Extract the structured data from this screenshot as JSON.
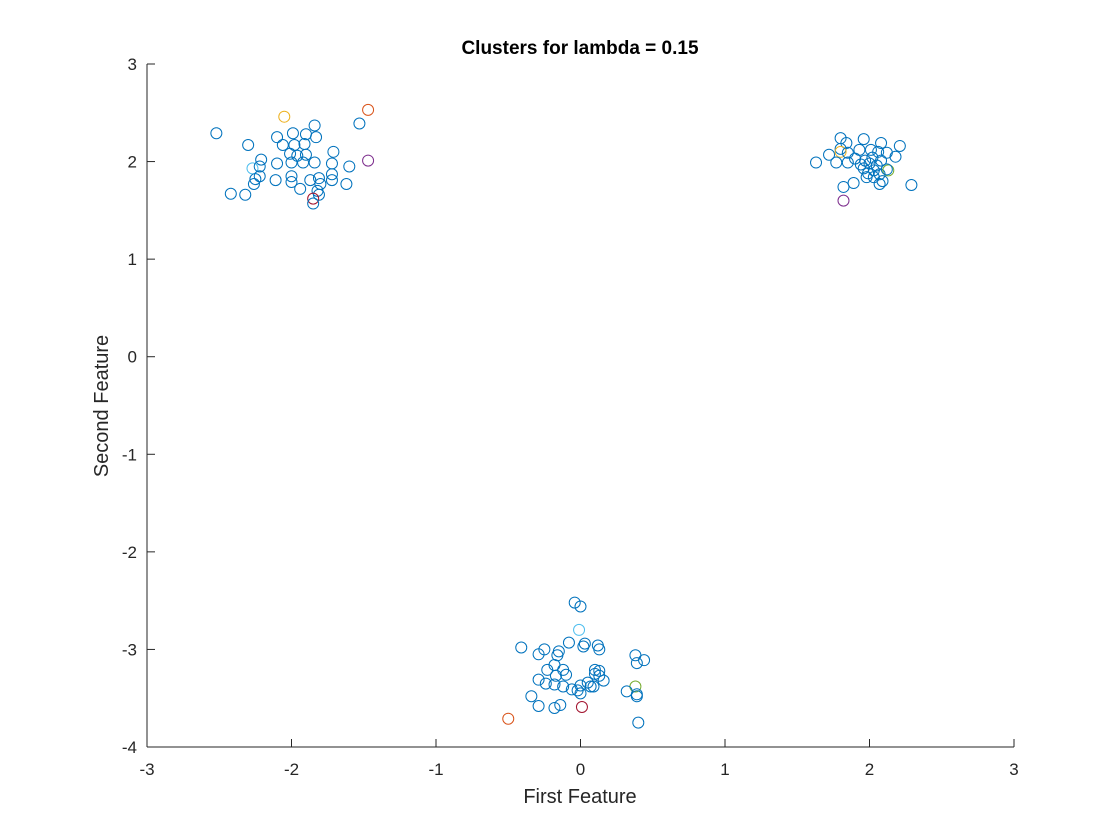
{
  "chart_data": {
    "type": "scatter",
    "title": "Clusters for lambda = 0.15",
    "xlabel": "First Feature",
    "ylabel": "Second Feature",
    "xlim": [
      -3,
      3
    ],
    "ylim": [
      -4,
      3
    ],
    "xticks": [
      -3,
      -2,
      -1,
      0,
      1,
      2,
      3
    ],
    "yticks": [
      -4,
      -3,
      -2,
      -1,
      0,
      1,
      2,
      3
    ],
    "grid": false,
    "marker": "circle-open",
    "colors": {
      "blue": "#0072BD",
      "orange": "#EDB120",
      "red": "#D95319",
      "purple": "#7E2F8E",
      "green": "#77AC30",
      "cyan": "#4DBEEE",
      "maroon": "#A2142F"
    },
    "points": [
      {
        "x": -2.52,
        "y": 2.29,
        "c": "blue"
      },
      {
        "x": -2.3,
        "y": 2.17,
        "c": "blue"
      },
      {
        "x": -2.1,
        "y": 2.25,
        "c": "blue"
      },
      {
        "x": -2.05,
        "y": 2.46,
        "c": "orange"
      },
      {
        "x": -1.99,
        "y": 2.29,
        "c": "blue"
      },
      {
        "x": -1.9,
        "y": 2.28,
        "c": "blue"
      },
      {
        "x": -1.84,
        "y": 2.37,
        "c": "blue"
      },
      {
        "x": -1.83,
        "y": 2.25,
        "c": "blue"
      },
      {
        "x": -1.53,
        "y": 2.39,
        "c": "blue"
      },
      {
        "x": -1.47,
        "y": 2.53,
        "c": "red"
      },
      {
        "x": -2.06,
        "y": 2.17,
        "c": "blue"
      },
      {
        "x": -1.98,
        "y": 2.17,
        "c": "blue"
      },
      {
        "x": -1.91,
        "y": 2.18,
        "c": "blue"
      },
      {
        "x": -2.01,
        "y": 2.08,
        "c": "blue"
      },
      {
        "x": -1.96,
        "y": 2.06,
        "c": "blue"
      },
      {
        "x": -1.9,
        "y": 2.07,
        "c": "blue"
      },
      {
        "x": -1.71,
        "y": 2.1,
        "c": "blue"
      },
      {
        "x": -2.21,
        "y": 2.02,
        "c": "blue"
      },
      {
        "x": -2.1,
        "y": 1.98,
        "c": "blue"
      },
      {
        "x": -2.0,
        "y": 1.99,
        "c": "blue"
      },
      {
        "x": -1.92,
        "y": 1.99,
        "c": "blue"
      },
      {
        "x": -1.84,
        "y": 1.99,
        "c": "blue"
      },
      {
        "x": -1.72,
        "y": 1.98,
        "c": "blue"
      },
      {
        "x": -1.6,
        "y": 1.95,
        "c": "blue"
      },
      {
        "x": -1.47,
        "y": 2.01,
        "c": "purple"
      },
      {
        "x": -2.27,
        "y": 1.93,
        "c": "cyan"
      },
      {
        "x": -2.22,
        "y": 1.95,
        "c": "blue"
      },
      {
        "x": -2.22,
        "y": 1.85,
        "c": "blue"
      },
      {
        "x": -2.25,
        "y": 1.82,
        "c": "blue"
      },
      {
        "x": -2.26,
        "y": 1.77,
        "c": "blue"
      },
      {
        "x": -2.11,
        "y": 1.81,
        "c": "blue"
      },
      {
        "x": -2.0,
        "y": 1.79,
        "c": "blue"
      },
      {
        "x": -2.0,
        "y": 1.85,
        "c": "blue"
      },
      {
        "x": -1.94,
        "y": 1.72,
        "c": "blue"
      },
      {
        "x": -1.87,
        "y": 1.81,
        "c": "blue"
      },
      {
        "x": -1.81,
        "y": 1.83,
        "c": "blue"
      },
      {
        "x": -1.8,
        "y": 1.77,
        "c": "blue"
      },
      {
        "x": -1.72,
        "y": 1.81,
        "c": "blue"
      },
      {
        "x": -1.72,
        "y": 1.87,
        "c": "blue"
      },
      {
        "x": -1.62,
        "y": 1.77,
        "c": "blue"
      },
      {
        "x": -2.42,
        "y": 1.67,
        "c": "blue"
      },
      {
        "x": -2.32,
        "y": 1.66,
        "c": "blue"
      },
      {
        "x": -1.82,
        "y": 1.7,
        "c": "blue"
      },
      {
        "x": -1.81,
        "y": 1.66,
        "c": "blue"
      },
      {
        "x": -1.85,
        "y": 1.62,
        "c": "maroon"
      },
      {
        "x": -1.85,
        "y": 1.57,
        "c": "blue"
      },
      {
        "x": 1.8,
        "y": 2.24,
        "c": "blue"
      },
      {
        "x": 1.84,
        "y": 2.19,
        "c": "blue"
      },
      {
        "x": 1.96,
        "y": 2.23,
        "c": "blue"
      },
      {
        "x": 2.08,
        "y": 2.19,
        "c": "blue"
      },
      {
        "x": 2.21,
        "y": 2.16,
        "c": "blue"
      },
      {
        "x": 1.72,
        "y": 2.07,
        "c": "blue"
      },
      {
        "x": 1.8,
        "y": 2.13,
        "c": "blue"
      },
      {
        "x": 1.8,
        "y": 2.1,
        "c": "orange"
      },
      {
        "x": 1.85,
        "y": 2.09,
        "c": "blue"
      },
      {
        "x": 1.93,
        "y": 2.12,
        "c": "blue"
      },
      {
        "x": 2.01,
        "y": 2.12,
        "c": "blue"
      },
      {
        "x": 2.06,
        "y": 2.1,
        "c": "blue"
      },
      {
        "x": 2.12,
        "y": 2.09,
        "c": "blue"
      },
      {
        "x": 2.18,
        "y": 2.05,
        "c": "blue"
      },
      {
        "x": 1.63,
        "y": 1.99,
        "c": "blue"
      },
      {
        "x": 1.77,
        "y": 1.99,
        "c": "blue"
      },
      {
        "x": 1.85,
        "y": 1.99,
        "c": "blue"
      },
      {
        "x": 1.9,
        "y": 2.03,
        "c": "blue"
      },
      {
        "x": 1.94,
        "y": 1.97,
        "c": "blue"
      },
      {
        "x": 1.97,
        "y": 2.01,
        "c": "blue"
      },
      {
        "x": 2.0,
        "y": 1.98,
        "c": "blue"
      },
      {
        "x": 2.02,
        "y": 2.04,
        "c": "blue"
      },
      {
        "x": 2.05,
        "y": 1.96,
        "c": "blue"
      },
      {
        "x": 2.08,
        "y": 2.01,
        "c": "blue"
      },
      {
        "x": 1.96,
        "y": 1.93,
        "c": "blue"
      },
      {
        "x": 1.99,
        "y": 1.88,
        "c": "blue"
      },
      {
        "x": 2.03,
        "y": 1.91,
        "c": "blue"
      },
      {
        "x": 2.07,
        "y": 1.87,
        "c": "blue"
      },
      {
        "x": 2.13,
        "y": 1.91,
        "c": "green"
      },
      {
        "x": 2.12,
        "y": 1.92,
        "c": "blue"
      },
      {
        "x": 1.98,
        "y": 1.84,
        "c": "blue"
      },
      {
        "x": 2.03,
        "y": 1.84,
        "c": "blue"
      },
      {
        "x": 2.07,
        "y": 1.77,
        "c": "blue"
      },
      {
        "x": 2.09,
        "y": 1.8,
        "c": "blue"
      },
      {
        "x": 1.89,
        "y": 1.78,
        "c": "blue"
      },
      {
        "x": 1.82,
        "y": 1.74,
        "c": "blue"
      },
      {
        "x": 2.29,
        "y": 1.76,
        "c": "blue"
      },
      {
        "x": 1.82,
        "y": 1.6,
        "c": "purple"
      },
      {
        "x": -0.04,
        "y": -2.52,
        "c": "blue"
      },
      {
        "x": 0.0,
        "y": -2.56,
        "c": "blue"
      },
      {
        "x": -0.01,
        "y": -2.8,
        "c": "cyan"
      },
      {
        "x": -0.08,
        "y": -2.93,
        "c": "blue"
      },
      {
        "x": 0.03,
        "y": -2.94,
        "c": "blue"
      },
      {
        "x": 0.02,
        "y": -2.97,
        "c": "blue"
      },
      {
        "x": 0.12,
        "y": -2.96,
        "c": "blue"
      },
      {
        "x": 0.13,
        "y": -3.0,
        "c": "blue"
      },
      {
        "x": -0.41,
        "y": -2.98,
        "c": "blue"
      },
      {
        "x": -0.25,
        "y": -3.0,
        "c": "blue"
      },
      {
        "x": -0.29,
        "y": -3.05,
        "c": "blue"
      },
      {
        "x": -0.15,
        "y": -3.02,
        "c": "blue"
      },
      {
        "x": -0.16,
        "y": -3.06,
        "c": "blue"
      },
      {
        "x": 0.38,
        "y": -3.06,
        "c": "blue"
      },
      {
        "x": 0.44,
        "y": -3.11,
        "c": "blue"
      },
      {
        "x": 0.39,
        "y": -3.14,
        "c": "blue"
      },
      {
        "x": -0.18,
        "y": -3.16,
        "c": "blue"
      },
      {
        "x": -0.23,
        "y": -3.21,
        "c": "blue"
      },
      {
        "x": -0.12,
        "y": -3.21,
        "c": "blue"
      },
      {
        "x": -0.1,
        "y": -3.26,
        "c": "blue"
      },
      {
        "x": -0.17,
        "y": -3.27,
        "c": "blue"
      },
      {
        "x": 0.1,
        "y": -3.21,
        "c": "blue"
      },
      {
        "x": 0.13,
        "y": -3.22,
        "c": "blue"
      },
      {
        "x": 0.1,
        "y": -3.25,
        "c": "blue"
      },
      {
        "x": 0.13,
        "y": -3.27,
        "c": "blue"
      },
      {
        "x": 0.16,
        "y": -3.32,
        "c": "blue"
      },
      {
        "x": -0.29,
        "y": -3.31,
        "c": "blue"
      },
      {
        "x": -0.24,
        "y": -3.35,
        "c": "blue"
      },
      {
        "x": -0.18,
        "y": -3.36,
        "c": "blue"
      },
      {
        "x": -0.12,
        "y": -3.38,
        "c": "blue"
      },
      {
        "x": 0.0,
        "y": -3.37,
        "c": "blue"
      },
      {
        "x": 0.05,
        "y": -3.34,
        "c": "blue"
      },
      {
        "x": 0.09,
        "y": -3.38,
        "c": "blue"
      },
      {
        "x": 0.07,
        "y": -3.38,
        "c": "blue"
      },
      {
        "x": -0.06,
        "y": -3.41,
        "c": "blue"
      },
      {
        "x": -0.02,
        "y": -3.42,
        "c": "blue"
      },
      {
        "x": 0.0,
        "y": -3.45,
        "c": "blue"
      },
      {
        "x": 0.38,
        "y": -3.38,
        "c": "green"
      },
      {
        "x": 0.32,
        "y": -3.43,
        "c": "blue"
      },
      {
        "x": 0.39,
        "y": -3.46,
        "c": "blue"
      },
      {
        "x": 0.39,
        "y": -3.48,
        "c": "blue"
      },
      {
        "x": -0.34,
        "y": -3.48,
        "c": "blue"
      },
      {
        "x": -0.29,
        "y": -3.58,
        "c": "blue"
      },
      {
        "x": -0.18,
        "y": -3.6,
        "c": "blue"
      },
      {
        "x": -0.14,
        "y": -3.57,
        "c": "blue"
      },
      {
        "x": 0.01,
        "y": -3.59,
        "c": "maroon"
      },
      {
        "x": -0.5,
        "y": -3.71,
        "c": "red"
      },
      {
        "x": 0.4,
        "y": -3.75,
        "c": "blue"
      }
    ]
  }
}
